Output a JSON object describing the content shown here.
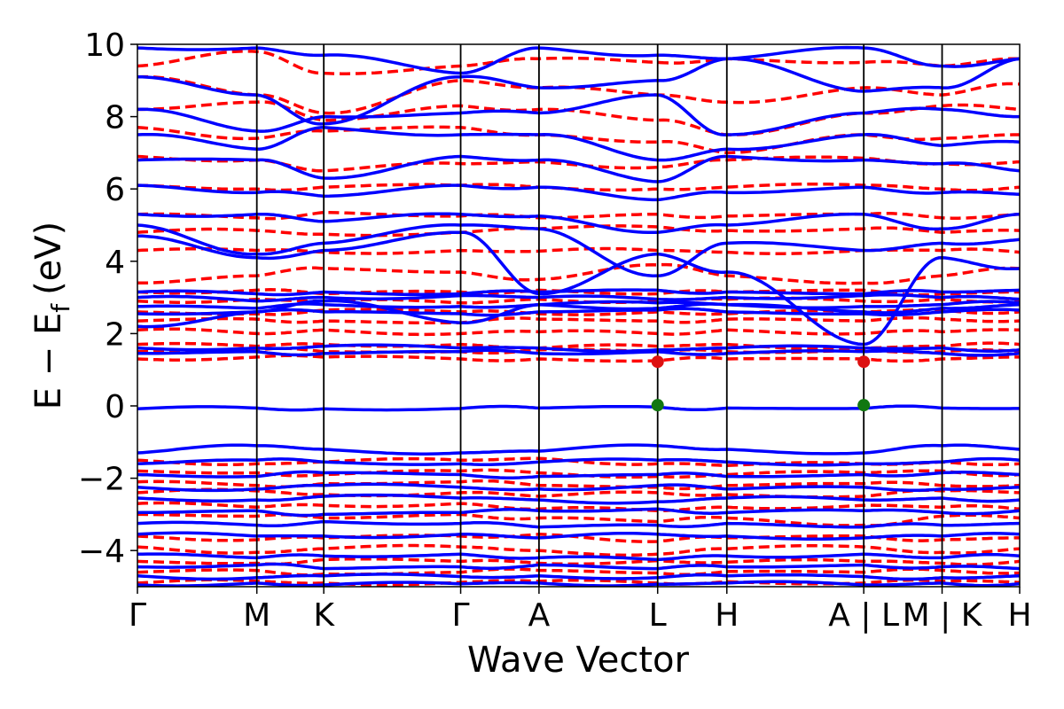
{
  "chart_data": {
    "type": "line",
    "title": "",
    "xlabel": "Wave Vector",
    "ylabel_main": "E − E",
    "ylabel_sub": "f",
    "ylabel_unit": "(eV)",
    "ylim": [
      -5,
      10
    ],
    "yticks": [
      -4,
      -2,
      0,
      2,
      4,
      6,
      8,
      10
    ],
    "ytick_labels": [
      "−4",
      "−2",
      "0",
      "2",
      "4",
      "6",
      "8",
      "10"
    ],
    "kpath_positions": [
      0,
      1.57,
      2.45,
      4.25,
      5.28,
      6.84,
      7.75,
      9.55,
      10.58,
      11.6
    ],
    "kpath_labels": [
      "Γ",
      "M",
      "K",
      "Γ",
      "A",
      "L",
      "H",
      "A | L",
      "M | K",
      "H"
    ],
    "grid": false,
    "series": [
      {
        "style": "dashed",
        "color": "#ff0000",
        "bands": [
          [
            -4.9,
            -4.85,
            -4.9,
            -4.88,
            -4.85,
            -4.9,
            -4.86,
            -4.9,
            -4.85,
            -4.88
          ],
          [
            -4.6,
            -4.55,
            -4.65,
            -4.6,
            -4.55,
            -4.62,
            -4.58,
            -4.6,
            -4.55,
            -4.62
          ],
          [
            -4.3,
            -4.35,
            -4.25,
            -4.3,
            -4.35,
            -4.28,
            -4.32,
            -4.3,
            -4.35,
            -4.3
          ],
          [
            -3.9,
            -4.05,
            -3.95,
            -3.9,
            -4.0,
            -4.1,
            -3.95,
            -3.9,
            -4.05,
            -3.95
          ],
          [
            -3.6,
            -3.7,
            -3.65,
            -3.6,
            -3.55,
            -3.75,
            -3.65,
            -3.6,
            -3.7,
            -3.65
          ],
          [
            -3.0,
            -3.05,
            -3.1,
            -3.0,
            -3.1,
            -3.2,
            -3.1,
            -3.3,
            -3.05,
            -3.1
          ],
          [
            -2.7,
            -2.8,
            -2.75,
            -2.7,
            -2.85,
            -2.9,
            -2.8,
            -2.75,
            -2.8,
            -2.85
          ],
          [
            -2.4,
            -2.35,
            -2.45,
            -2.4,
            -2.5,
            -2.4,
            -2.45,
            -2.5,
            -2.35,
            -2.4
          ],
          [
            -2.1,
            -2.2,
            -2.15,
            -2.1,
            -2.2,
            -2.25,
            -2.2,
            -2.15,
            -2.2,
            -2.2
          ],
          [
            -1.8,
            -1.85,
            -1.9,
            -1.8,
            -1.85,
            -1.95,
            -1.9,
            -1.85,
            -1.8,
            -1.9
          ],
          [
            -1.5,
            -1.6,
            -1.55,
            -1.5,
            -1.45,
            -1.6,
            -1.65,
            -1.6,
            -1.55,
            -1.6
          ],
          [
            1.3,
            1.35,
            1.35,
            1.3,
            1.3,
            1.25,
            1.3,
            1.3,
            1.3,
            1.35
          ],
          [
            1.5,
            1.55,
            1.5,
            1.5,
            1.55,
            1.5,
            1.5,
            1.55,
            1.5,
            1.5
          ],
          [
            1.7,
            1.65,
            1.7,
            1.7,
            1.6,
            1.65,
            1.7,
            1.6,
            1.65,
            1.7
          ],
          [
            2.1,
            2.0,
            2.1,
            2.0,
            2.05,
            2.0,
            2.1,
            2.0,
            2.05,
            2.1
          ],
          [
            2.35,
            2.4,
            2.35,
            2.3,
            2.4,
            2.35,
            2.4,
            2.35,
            2.4,
            2.35
          ],
          [
            2.6,
            2.55,
            2.65,
            2.6,
            2.55,
            2.6,
            2.55,
            2.6,
            2.65,
            2.6
          ],
          [
            2.9,
            2.95,
            2.9,
            2.85,
            2.95,
            2.9,
            2.95,
            2.9,
            2.95,
            2.9
          ],
          [
            3.15,
            3.2,
            3.1,
            3.15,
            3.2,
            3.1,
            3.15,
            3.2,
            3.1,
            3.15
          ],
          [
            3.4,
            3.6,
            3.8,
            3.7,
            3.5,
            3.9,
            3.6,
            3.4,
            3.6,
            3.8
          ],
          [
            4.3,
            4.3,
            4.25,
            4.3,
            4.28,
            4.3,
            4.25,
            4.3,
            4.3,
            4.25
          ],
          [
            4.8,
            4.85,
            4.75,
            4.8,
            4.9,
            4.95,
            4.85,
            4.9,
            4.8,
            4.85
          ],
          [
            5.3,
            5.2,
            5.35,
            5.25,
            5.2,
            5.3,
            5.25,
            5.3,
            5.2,
            5.3
          ],
          [
            6.1,
            6.0,
            6.05,
            6.1,
            6.05,
            6.0,
            6.05,
            6.1,
            6.0,
            6.05
          ],
          [
            6.9,
            6.8,
            6.5,
            6.7,
            6.75,
            6.6,
            6.8,
            6.85,
            6.7,
            6.75
          ],
          [
            7.7,
            7.4,
            7.6,
            7.7,
            7.5,
            7.3,
            7.0,
            7.5,
            7.4,
            7.5
          ],
          [
            8.2,
            8.4,
            7.9,
            8.3,
            8.2,
            7.9,
            7.5,
            8.1,
            8.3,
            8.2
          ],
          [
            9.1,
            8.6,
            8.1,
            9.0,
            8.8,
            8.6,
            8.4,
            8.8,
            8.6,
            8.9
          ],
          [
            9.4,
            9.8,
            9.2,
            9.4,
            9.6,
            9.5,
            9.6,
            9.5,
            9.4,
            9.6
          ]
        ]
      },
      {
        "style": "solid",
        "color": "#0000ff",
        "bands": [
          [
            -4.95,
            -4.9,
            -4.95,
            -4.92,
            -4.9,
            -4.93,
            -4.9,
            -4.95,
            -4.9,
            -4.92
          ],
          [
            -4.7,
            -4.75,
            -4.7,
            -4.72,
            -4.7,
            -4.75,
            -4.7,
            -4.72,
            -4.75,
            -4.7
          ],
          [
            -4.45,
            -4.4,
            -4.5,
            -4.45,
            -4.4,
            -4.5,
            -4.45,
            -4.4,
            -4.45,
            -4.5
          ],
          [
            -4.1,
            -4.2,
            -4.15,
            -4.1,
            -4.2,
            -4.25,
            -4.15,
            -4.1,
            -4.2,
            -4.15
          ],
          [
            -3.55,
            -3.6,
            -3.6,
            -3.55,
            -3.65,
            -3.55,
            -3.6,
            -3.65,
            -3.6,
            -3.55
          ],
          [
            -3.25,
            -3.3,
            -3.2,
            -3.25,
            -3.35,
            -3.3,
            -3.25,
            -3.35,
            -3.3,
            -3.25
          ],
          [
            -2.95,
            -2.9,
            -3.0,
            -2.95,
            -2.9,
            -2.85,
            -2.95,
            -2.9,
            -2.95,
            -2.9
          ],
          [
            -2.55,
            -2.6,
            -2.5,
            -2.55,
            -2.6,
            -2.65,
            -2.55,
            -2.6,
            -2.55,
            -2.6
          ],
          [
            -2.25,
            -2.3,
            -2.2,
            -2.25,
            -2.3,
            -2.2,
            -2.3,
            -2.25,
            -2.3,
            -2.25
          ],
          [
            -1.9,
            -1.95,
            -1.85,
            -1.9,
            -1.95,
            -1.9,
            -1.95,
            -1.9,
            -1.85,
            -1.9
          ],
          [
            -1.6,
            -1.5,
            -1.55,
            -1.6,
            -1.55,
            -1.5,
            -1.55,
            -1.6,
            -1.55,
            -1.5
          ],
          [
            -1.3,
            -1.1,
            -1.2,
            -1.3,
            -1.25,
            -1.1,
            -1.2,
            -1.3,
            -1.1,
            -1.2
          ],
          [
            -0.08,
            -0.06,
            -0.08,
            -0.07,
            -0.06,
            -0.03,
            -0.06,
            -0.07,
            -0.06,
            -0.07
          ],
          [
            1.45,
            1.5,
            1.45,
            1.5,
            1.45,
            1.5,
            1.45,
            1.5,
            1.45,
            1.45
          ],
          [
            1.6,
            1.6,
            1.65,
            1.6,
            1.6,
            1.55,
            1.6,
            1.6,
            1.6,
            1.55
          ],
          [
            2.2,
            2.6,
            2.9,
            2.3,
            2.8,
            2.7,
            2.8,
            2.6,
            2.7,
            2.8
          ],
          [
            2.55,
            2.6,
            2.6,
            2.55,
            2.6,
            2.65,
            2.6,
            2.55,
            2.6,
            2.65
          ],
          [
            2.75,
            2.7,
            2.8,
            2.75,
            2.8,
            2.85,
            2.8,
            2.75,
            2.8,
            2.85
          ],
          [
            3.0,
            2.9,
            3.0,
            3.05,
            3.0,
            2.95,
            3.0,
            3.05,
            3.0,
            2.95
          ],
          [
            3.15,
            3.1,
            3.15,
            3.1,
            3.15,
            3.2,
            3.15,
            3.1,
            3.15,
            3.2
          ],
          [
            4.7,
            4.1,
            4.3,
            4.8,
            3.1,
            4.2,
            3.7,
            1.7,
            4.1,
            3.8
          ],
          [
            5.0,
            4.2,
            4.5,
            5.0,
            4.9,
            3.6,
            4.5,
            4.3,
            4.5,
            4.6
          ],
          [
            5.3,
            5.3,
            5.1,
            5.3,
            5.25,
            4.8,
            5.0,
            5.3,
            4.9,
            5.3
          ],
          [
            6.1,
            5.9,
            5.8,
            6.1,
            6.05,
            5.7,
            5.9,
            6.05,
            5.9,
            5.85
          ],
          [
            6.8,
            6.8,
            6.3,
            6.9,
            6.8,
            6.2,
            6.9,
            6.8,
            6.7,
            6.5
          ],
          [
            7.5,
            7.1,
            7.7,
            7.5,
            7.5,
            6.8,
            7.1,
            7.5,
            7.2,
            7.3
          ],
          [
            8.2,
            7.6,
            8.0,
            8.1,
            8.1,
            8.6,
            7.5,
            8.1,
            8.2,
            8.0
          ],
          [
            9.1,
            8.6,
            7.8,
            9.1,
            8.8,
            9.0,
            9.6,
            8.7,
            8.8,
            9.6
          ],
          [
            9.9,
            9.9,
            9.7,
            9.2,
            9.9,
            9.7,
            9.6,
            9.9,
            9.4,
            9.6
          ]
        ]
      }
    ],
    "markers": [
      {
        "k": 6.84,
        "e": 1.22,
        "color": "#dd1111"
      },
      {
        "k": 9.55,
        "e": 1.22,
        "color": "#dd1111"
      },
      {
        "k": 6.84,
        "e": 0.02,
        "color": "#117711"
      },
      {
        "k": 9.55,
        "e": 0.02,
        "color": "#117711"
      }
    ]
  }
}
